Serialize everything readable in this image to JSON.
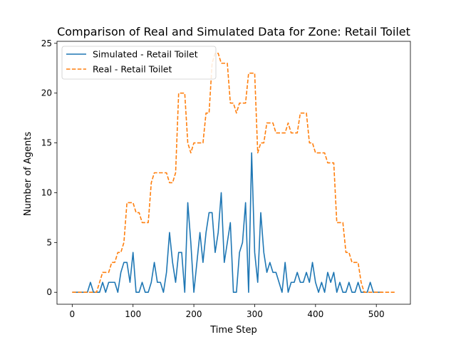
{
  "chart_data": {
    "type": "line",
    "title": "Comparison of Real and Simulated Data for Zone: Retail Toilet",
    "xlabel": "Time Step",
    "ylabel": "Number of Agents",
    "xlim": [
      -25,
      556
    ],
    "ylim": [
      -1.2,
      25.2
    ],
    "xticks": [
      0,
      100,
      200,
      300,
      400,
      500
    ],
    "yticks": [
      0,
      5,
      10,
      15,
      20,
      25
    ],
    "grid": false,
    "legend_position": "top-left",
    "series": [
      {
        "name": "Simulated - Retail Toilet",
        "color": "#1f77b4",
        "dash": "solid",
        "x": [
          0,
          5,
          10,
          15,
          20,
          25,
          30,
          35,
          40,
          45,
          50,
          55,
          60,
          65,
          70,
          75,
          80,
          85,
          90,
          95,
          100,
          105,
          110,
          115,
          120,
          125,
          130,
          135,
          140,
          145,
          150,
          155,
          160,
          165,
          170,
          175,
          180,
          185,
          190,
          195,
          200,
          205,
          210,
          215,
          220,
          225,
          230,
          235,
          240,
          245,
          250,
          255,
          260,
          265,
          270,
          275,
          280,
          285,
          290,
          295,
          300,
          305,
          310,
          315,
          320,
          325,
          330,
          335,
          340,
          345,
          350,
          355,
          360,
          365,
          370,
          375,
          380,
          385,
          390,
          395,
          400,
          405,
          410,
          415,
          420,
          425,
          430,
          435,
          440,
          445,
          450,
          455,
          460,
          465,
          470,
          475,
          480,
          485,
          490,
          495,
          500,
          505,
          510
        ],
        "y": [
          0,
          0,
          0,
          0,
          0,
          0,
          1,
          0,
          0,
          0,
          1,
          0,
          1,
          1,
          1,
          0,
          2,
          3,
          3,
          1,
          4,
          0,
          0,
          1,
          0,
          0,
          1,
          3,
          1,
          1,
          0,
          2,
          6,
          3,
          1,
          4,
          4,
          0,
          9,
          5,
          0,
          3,
          6,
          3,
          6,
          8,
          8,
          4,
          6,
          10,
          3,
          5,
          7,
          0,
          0,
          4,
          5,
          9,
          0,
          14,
          4,
          1,
          8,
          4,
          2,
          3,
          2,
          2,
          1,
          0,
          3,
          0,
          1,
          1,
          2,
          1,
          1,
          2,
          1,
          3,
          1,
          0,
          1,
          0,
          2,
          1,
          2,
          0,
          1,
          0,
          0,
          1,
          0,
          0,
          1,
          0,
          0,
          0,
          1,
          0,
          0,
          0,
          0
        ]
      },
      {
        "name": "Real - Retail Toilet",
        "color": "#ff7f0e",
        "dash": "dashed",
        "x": [
          0,
          5,
          10,
          15,
          20,
          25,
          30,
          35,
          40,
          45,
          50,
          55,
          60,
          65,
          70,
          75,
          80,
          85,
          90,
          95,
          100,
          105,
          110,
          115,
          120,
          125,
          130,
          135,
          140,
          145,
          150,
          155,
          160,
          165,
          170,
          175,
          180,
          185,
          190,
          195,
          200,
          205,
          210,
          215,
          220,
          225,
          230,
          235,
          240,
          245,
          250,
          255,
          260,
          265,
          270,
          275,
          280,
          285,
          290,
          295,
          300,
          305,
          310,
          315,
          320,
          325,
          330,
          335,
          340,
          345,
          350,
          355,
          360,
          365,
          370,
          375,
          380,
          385,
          390,
          395,
          400,
          405,
          410,
          415,
          420,
          425,
          430,
          435,
          440,
          445,
          450,
          455,
          460,
          465,
          470,
          475,
          480,
          485,
          490,
          495,
          500,
          505,
          510,
          515,
          520,
          525,
          530
        ],
        "y": [
          0,
          0,
          0,
          0,
          0,
          0,
          0,
          0,
          0,
          1,
          2,
          2,
          2,
          3,
          3,
          4,
          4,
          5,
          9,
          9,
          9,
          8,
          8,
          7,
          7,
          7,
          11,
          12,
          12,
          12,
          12,
          12,
          11,
          11,
          12,
          20,
          20,
          20,
          15,
          14,
          15,
          15,
          15,
          15,
          18,
          18,
          23,
          24,
          24,
          23,
          23,
          23,
          19,
          19,
          18,
          19,
          19,
          19,
          22,
          22,
          22,
          14,
          15,
          15,
          17,
          17,
          17,
          16,
          16,
          16,
          16,
          17,
          16,
          16,
          16,
          18,
          18,
          18,
          15,
          15,
          14,
          14,
          14,
          14,
          13,
          13,
          13,
          7,
          7,
          7,
          4,
          4,
          3,
          3,
          3,
          1,
          0,
          0,
          0,
          0,
          0,
          0,
          0,
          0,
          0,
          0,
          0
        ]
      }
    ]
  }
}
